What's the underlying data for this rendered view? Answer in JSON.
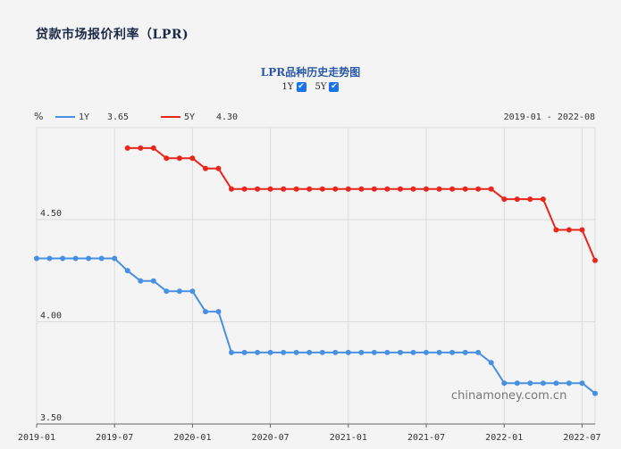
{
  "page": {
    "title": "贷款市场报价利率（LPR)"
  },
  "chart_title": "LPR品种历史走势图",
  "toggles": [
    {
      "label": "1Y",
      "checked": true,
      "check_glyph": "✔"
    },
    {
      "label": "5Y",
      "checked": true,
      "check_glyph": "✔"
    }
  ],
  "unit": "%",
  "legend": [
    {
      "name": "1Y",
      "value": "3.65",
      "color": "#4a90e2"
    },
    {
      "name": "5Y",
      "value": "4.30",
      "color": "#e8261c"
    }
  ],
  "date_range": "2019-01 - 2022-08",
  "watermark": "chinamoney.com.cn",
  "chart_data": {
    "type": "line",
    "x_start": "2019-01",
    "x_end": "2022-08",
    "ylim": [
      3.5,
      4.95
    ],
    "yticks": [
      "4.50",
      "4.00",
      "3.50"
    ],
    "xticks": [
      "2019-01",
      "2019-07",
      "2020-01",
      "2020-07",
      "2021-01",
      "2021-07",
      "2022-01",
      "2022-07"
    ],
    "grid": true,
    "series": [
      {
        "name": "1Y",
        "color": "#4a90e2",
        "points": [
          [
            "2019-01",
            4.31
          ],
          [
            "2019-02",
            4.31
          ],
          [
            "2019-03",
            4.31
          ],
          [
            "2019-04",
            4.31
          ],
          [
            "2019-05",
            4.31
          ],
          [
            "2019-06",
            4.31
          ],
          [
            "2019-07",
            4.31
          ],
          [
            "2019-08",
            4.25
          ],
          [
            "2019-09",
            4.2
          ],
          [
            "2019-10",
            4.2
          ],
          [
            "2019-11",
            4.15
          ],
          [
            "2019-12",
            4.15
          ],
          [
            "2020-01",
            4.15
          ],
          [
            "2020-02",
            4.05
          ],
          [
            "2020-03",
            4.05
          ],
          [
            "2020-04",
            3.85
          ],
          [
            "2020-05",
            3.85
          ],
          [
            "2020-06",
            3.85
          ],
          [
            "2020-07",
            3.85
          ],
          [
            "2020-08",
            3.85
          ],
          [
            "2020-09",
            3.85
          ],
          [
            "2020-10",
            3.85
          ],
          [
            "2020-11",
            3.85
          ],
          [
            "2020-12",
            3.85
          ],
          [
            "2021-01",
            3.85
          ],
          [
            "2021-02",
            3.85
          ],
          [
            "2021-03",
            3.85
          ],
          [
            "2021-04",
            3.85
          ],
          [
            "2021-05",
            3.85
          ],
          [
            "2021-06",
            3.85
          ],
          [
            "2021-07",
            3.85
          ],
          [
            "2021-08",
            3.85
          ],
          [
            "2021-09",
            3.85
          ],
          [
            "2021-10",
            3.85
          ],
          [
            "2021-11",
            3.85
          ],
          [
            "2021-12",
            3.8
          ],
          [
            "2022-01",
            3.7
          ],
          [
            "2022-02",
            3.7
          ],
          [
            "2022-03",
            3.7
          ],
          [
            "2022-04",
            3.7
          ],
          [
            "2022-05",
            3.7
          ],
          [
            "2022-06",
            3.7
          ],
          [
            "2022-07",
            3.7
          ],
          [
            "2022-08",
            3.65
          ]
        ]
      },
      {
        "name": "5Y",
        "color": "#e8261c",
        "points": [
          [
            "2019-08",
            4.85
          ],
          [
            "2019-09",
            4.85
          ],
          [
            "2019-10",
            4.85
          ],
          [
            "2019-11",
            4.8
          ],
          [
            "2019-12",
            4.8
          ],
          [
            "2020-01",
            4.8
          ],
          [
            "2020-02",
            4.75
          ],
          [
            "2020-03",
            4.75
          ],
          [
            "2020-04",
            4.65
          ],
          [
            "2020-05",
            4.65
          ],
          [
            "2020-06",
            4.65
          ],
          [
            "2020-07",
            4.65
          ],
          [
            "2020-08",
            4.65
          ],
          [
            "2020-09",
            4.65
          ],
          [
            "2020-10",
            4.65
          ],
          [
            "2020-11",
            4.65
          ],
          [
            "2020-12",
            4.65
          ],
          [
            "2021-01",
            4.65
          ],
          [
            "2021-02",
            4.65
          ],
          [
            "2021-03",
            4.65
          ],
          [
            "2021-04",
            4.65
          ],
          [
            "2021-05",
            4.65
          ],
          [
            "2021-06",
            4.65
          ],
          [
            "2021-07",
            4.65
          ],
          [
            "2021-08",
            4.65
          ],
          [
            "2021-09",
            4.65
          ],
          [
            "2021-10",
            4.65
          ],
          [
            "2021-11",
            4.65
          ],
          [
            "2021-12",
            4.65
          ],
          [
            "2022-01",
            4.6
          ],
          [
            "2022-02",
            4.6
          ],
          [
            "2022-03",
            4.6
          ],
          [
            "2022-04",
            4.6
          ],
          [
            "2022-05",
            4.45
          ],
          [
            "2022-06",
            4.45
          ],
          [
            "2022-07",
            4.45
          ],
          [
            "2022-08",
            4.3
          ]
        ]
      }
    ]
  }
}
